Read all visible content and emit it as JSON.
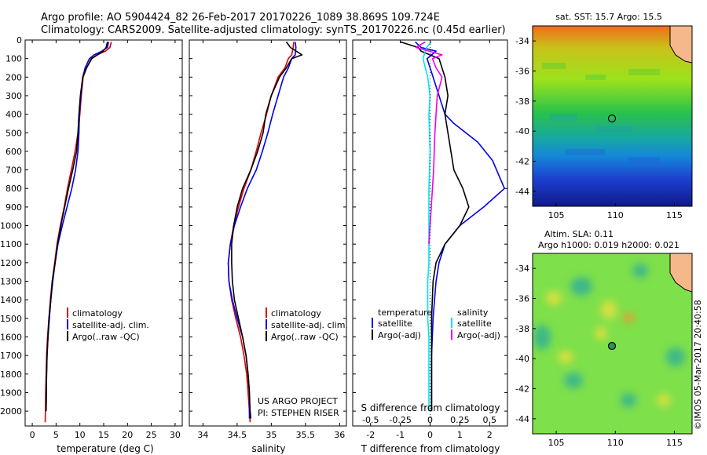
{
  "header": {
    "line1": "Argo profile: AO 5904424_82 26-Feb-2017 20170226_1089 38.869S 109.724E",
    "line2": "Climatology: CARS2009. Satellite-adjusted climatology: synTS_20170226.nc (0.45d earlier)"
  },
  "colors": {
    "climatology": "#dd0000",
    "satellite": "#0000ee",
    "argo": "#000000",
    "satellite_salinity": "#00e5ee",
    "argo_salinity": "#ee00ee",
    "land": "#f4b88a"
  },
  "chart_data": [
    {
      "type": "line",
      "panel": "temperature",
      "xlabel": "temperature (deg C)",
      "ylabel": "",
      "xlim": [
        -1.5,
        31.5
      ],
      "ylim": [
        2080,
        0
      ],
      "xticks": [
        0,
        5,
        10,
        15,
        20,
        25,
        30
      ],
      "yticks": [
        0,
        100,
        200,
        300,
        400,
        500,
        600,
        700,
        800,
        900,
        1000,
        1100,
        1200,
        1300,
        1400,
        1500,
        1600,
        1700,
        1800,
        1900,
        2000
      ],
      "legend": [
        "climatology",
        "satellite-adj. clim.",
        "Argo(..raw -QC)"
      ],
      "series": [
        {
          "name": "climatology",
          "color": "#dd0000",
          "x": [
            16.6,
            16.3,
            15.4,
            13.6,
            12.4,
            11.4,
            10.7,
            10.3,
            10.0,
            9.6,
            9.0,
            8.2,
            7.4,
            6.7,
            5.9,
            5.2,
            4.7,
            4.2,
            3.8,
            3.5,
            3.2,
            3.0,
            2.9,
            2.8,
            2.75,
            2.7
          ],
          "y": [
            10,
            40,
            60,
            80,
            100,
            150,
            200,
            300,
            400,
            500,
            600,
            700,
            800,
            900,
            1000,
            1100,
            1200,
            1300,
            1400,
            1500,
            1600,
            1700,
            1800,
            1900,
            2000,
            2060
          ]
        },
        {
          "name": "satellite-adj. clim.",
          "color": "#0000ee",
          "x": [
            16.0,
            15.8,
            14.6,
            13.0,
            12.0,
            11.1,
            10.6,
            10.2,
            9.9,
            9.8,
            9.6,
            9.1,
            8.3,
            7.3,
            6.3,
            5.4,
            4.8,
            4.3,
            3.9,
            3.6,
            3.3,
            3.1,
            3.0,
            2.95,
            2.9
          ],
          "y": [
            10,
            40,
            60,
            80,
            100,
            150,
            200,
            300,
            400,
            500,
            600,
            700,
            800,
            900,
            1000,
            1100,
            1200,
            1300,
            1400,
            1500,
            1600,
            1700,
            1800,
            1900,
            2000
          ]
        },
        {
          "name": "Argo(..raw -QC)",
          "color": "#000000",
          "x": [
            15.8,
            15.5,
            14.9,
            13.7,
            12.5,
            11.4,
            10.6,
            10.1,
            9.8,
            9.6,
            9.3,
            8.5,
            7.6,
            6.8,
            6.0,
            5.3,
            4.8,
            4.2,
            3.9,
            3.5,
            3.3,
            3.1,
            3.0,
            2.95,
            2.9
          ],
          "y": [
            10,
            40,
            60,
            80,
            100,
            150,
            200,
            300,
            400,
            500,
            600,
            700,
            800,
            900,
            1000,
            1100,
            1200,
            1300,
            1400,
            1500,
            1600,
            1700,
            1800,
            1900,
            2000
          ]
        }
      ]
    },
    {
      "type": "line",
      "panel": "salinity",
      "xlabel": "salinity",
      "ylabel": "",
      "xlim": [
        33.8,
        36.1
      ],
      "ylim": [
        2080,
        0
      ],
      "xticks": [
        34,
        34.5,
        35,
        35.5,
        36
      ],
      "legend": [
        "climatology",
        "satellite-adj. clim.",
        "Argo(..raw -QC)"
      ],
      "annotation": [
        "US ARGO PROJECT",
        "PI: STEPHEN RISER"
      ],
      "series": [
        {
          "name": "climatology",
          "color": "#dd0000",
          "x": [
            35.33,
            35.32,
            35.3,
            35.25,
            35.2,
            35.1,
            35.0,
            34.93,
            34.85,
            34.78,
            34.7,
            34.6,
            34.52,
            34.45,
            34.4,
            34.37,
            34.38,
            34.42,
            34.48,
            34.55,
            34.6,
            34.64,
            34.66,
            34.68,
            34.69
          ],
          "y": [
            10,
            40,
            80,
            100,
            150,
            200,
            300,
            400,
            500,
            600,
            700,
            800,
            900,
            1000,
            1100,
            1200,
            1300,
            1400,
            1500,
            1600,
            1700,
            1800,
            1900,
            2000,
            2060
          ]
        },
        {
          "name": "satellite-adj. clim.",
          "color": "#0000ee",
          "x": [
            35.35,
            35.36,
            35.35,
            35.3,
            35.25,
            35.18,
            35.1,
            35.02,
            34.95,
            34.87,
            34.78,
            34.65,
            34.55,
            34.46,
            34.4,
            34.37,
            34.38,
            34.43,
            34.5,
            34.58,
            34.63,
            34.66,
            34.68,
            34.68,
            34.68
          ],
          "y": [
            10,
            40,
            80,
            100,
            150,
            200,
            300,
            400,
            500,
            600,
            700,
            800,
            900,
            1000,
            1100,
            1200,
            1300,
            1400,
            1500,
            1600,
            1700,
            1800,
            1900,
            2000,
            2040
          ]
        },
        {
          "name": "Argo(..raw -QC)",
          "color": "#000000",
          "x": [
            35.22,
            35.28,
            35.45,
            35.3,
            35.22,
            35.12,
            35.0,
            34.92,
            34.88,
            34.8,
            34.7,
            34.58,
            34.5,
            34.45,
            34.42,
            34.42,
            34.43,
            34.46,
            34.52,
            34.58,
            34.63,
            34.66,
            34.68,
            34.69,
            34.7
          ],
          "y": [
            10,
            40,
            80,
            100,
            150,
            200,
            300,
            400,
            500,
            600,
            700,
            800,
            900,
            1000,
            1100,
            1200,
            1300,
            1400,
            1500,
            1600,
            1700,
            1800,
            1900,
            2000,
            2040
          ]
        }
      ]
    },
    {
      "type": "line",
      "panel": "difference",
      "xlabel": "T difference from climatology",
      "xlabel_top": "S difference from climatology",
      "xlim": [
        -2.6,
        2.6
      ],
      "ylim": [
        2080,
        0
      ],
      "xticks": [
        -2,
        -1,
        0,
        1,
        2
      ],
      "xticks_top": [
        -0.5,
        -0.25,
        0,
        0.25,
        0.5
      ],
      "legend_headers": [
        "temperature",
        "salinity"
      ],
      "legend": [
        "satellite",
        "Argo(-adj)",
        "satellite",
        "Argo(-adj)"
      ],
      "series": [
        {
          "name": "temperature satellite",
          "color": "#0000ee",
          "x": [
            -0.5,
            -0.3,
            0.2,
            -0.1,
            0.1,
            0.3,
            0.5,
            0.8,
            1.2,
            1.6,
            2.1,
            2.5,
            1.8,
            1.0,
            0.5,
            0.3,
            0.2,
            0.1,
            0.05,
            0.05,
            0.05,
            0.05
          ],
          "y": [
            10,
            40,
            60,
            100,
            200,
            300,
            400,
            450,
            500,
            550,
            650,
            800,
            900,
            1000,
            1100,
            1200,
            1300,
            1500,
            1700,
            1800,
            1900,
            2000
          ]
        },
        {
          "name": "temperature Argo(-adj)",
          "color": "#000000",
          "x": [
            -1.0,
            -0.4,
            -0.3,
            0.3,
            0.5,
            0.6,
            0.5,
            0.6,
            0.8,
            1.1,
            1.3,
            1.0,
            0.5,
            0.2,
            0.1,
            0.05,
            0.05,
            0.05,
            0.05
          ],
          "y": [
            10,
            40,
            60,
            100,
            200,
            300,
            400,
            500,
            700,
            800,
            900,
            1000,
            1100,
            1200,
            1300,
            1500,
            1700,
            1800,
            2000
          ]
        },
        {
          "name": "salinity satellite",
          "color": "#00e5ee",
          "x": [
            0.01,
            -0.03,
            -0.06,
            -0.02,
            0.0,
            -0.01,
            0.0,
            -0.01,
            -0.01,
            -0.01,
            -0.01,
            -0.02,
            -0.02,
            -0.02,
            -0.01,
            -0.01,
            -0.01,
            -0.01
          ],
          "y": [
            10,
            40,
            100,
            200,
            300,
            400,
            600,
            800,
            1000,
            1100,
            1200,
            1300,
            1400,
            1500,
            1600,
            1700,
            1800,
            2000
          ]
        },
        {
          "name": "salinity Argo(-adj)",
          "color": "#ee00ee",
          "x": [
            -0.04,
            -0.12,
            0.1,
            0.02,
            0.05,
            0.1,
            0.06,
            0.05,
            0.04,
            0.03,
            0.01,
            0.0,
            -0.01
          ],
          "y": [
            10,
            40,
            80,
            100,
            150,
            200,
            300,
            400,
            500,
            700,
            900,
            1000,
            1100
          ]
        }
      ]
    },
    {
      "type": "heatmap",
      "panel": "map-sst",
      "title": "sat. SST: 15.7  Argo: 15.5",
      "xlim": [
        103,
        116.5
      ],
      "ylim": [
        -45,
        -33
      ],
      "xticks": [
        105,
        110,
        115
      ],
      "yticks": [
        -34,
        -36,
        -38,
        -40,
        -42,
        -44
      ],
      "argo_position": {
        "lon": 109.724,
        "lat": -38.869
      }
    },
    {
      "type": "heatmap",
      "panel": "map-sla",
      "title_line1": "Altim. SLA: 0.11",
      "title_line2": "Argo h1000: 0.019 h2000: 0.021",
      "xlim": [
        103,
        116.5
      ],
      "ylim": [
        -45,
        -33
      ],
      "xticks": [
        105,
        110,
        115
      ],
      "yticks": [
        -34,
        -36,
        -38,
        -40,
        -42,
        -44
      ],
      "argo_position": {
        "lon": 109.724,
        "lat": -38.869
      }
    }
  ],
  "watermark": "©IMOS 05-Mar-2017 20:40:58"
}
